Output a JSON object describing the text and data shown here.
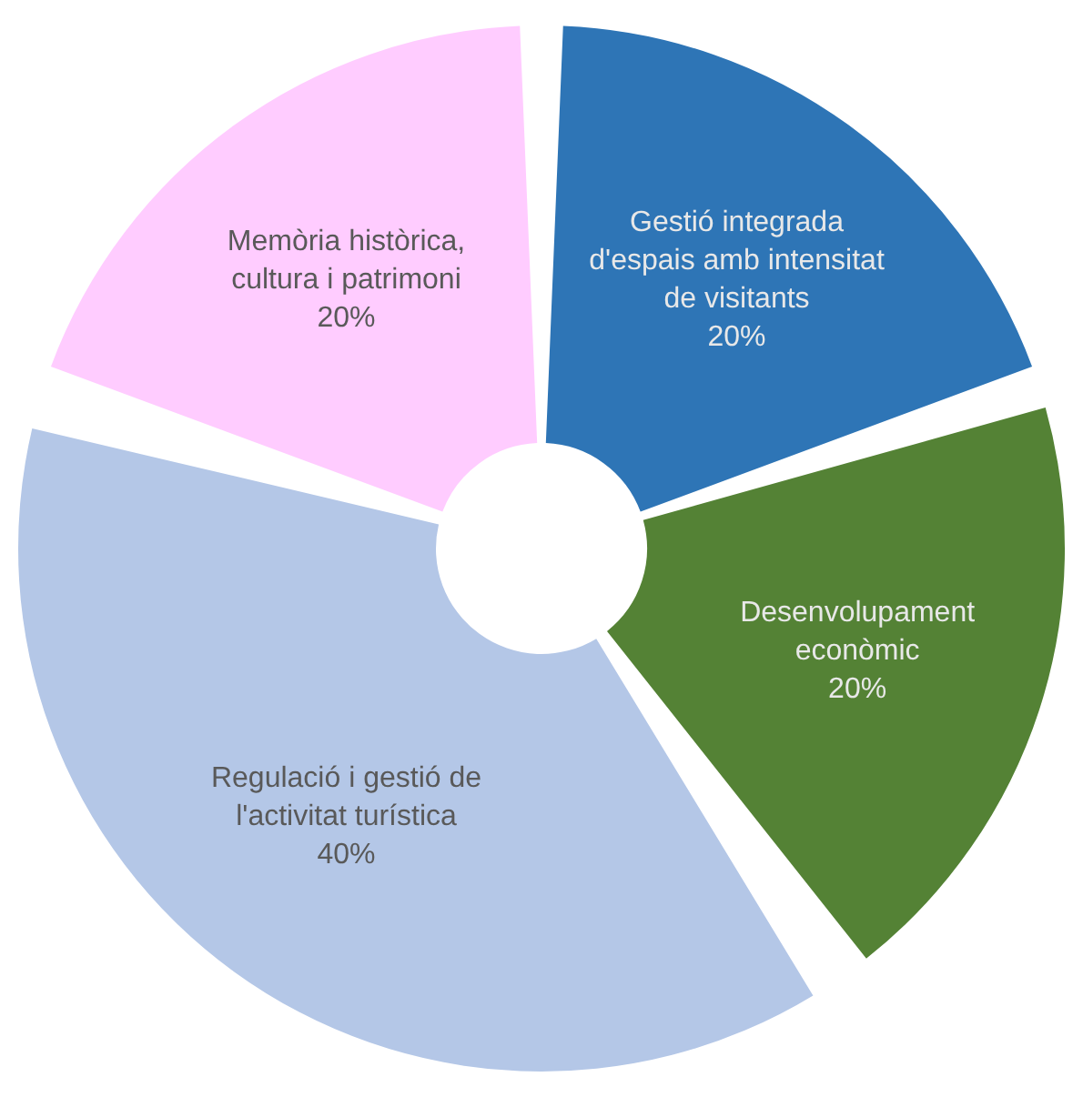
{
  "chart_data": {
    "type": "donut",
    "categories": [
      "Gestió integrada d'espais amb intensitat de visitants",
      "Desenvolupament econòmic",
      "Regulació i gestió de l'activitat turística",
      "Memòria històrica, cultura i patrimoni"
    ],
    "values": [
      20,
      20,
      40,
      20
    ],
    "colors": [
      "#2e75b6",
      "#548235",
      "#b4c7e7",
      "#ffccff"
    ],
    "value_labels": [
      "20%",
      "20%",
      "40%",
      "20%"
    ],
    "legend": false
  }
}
